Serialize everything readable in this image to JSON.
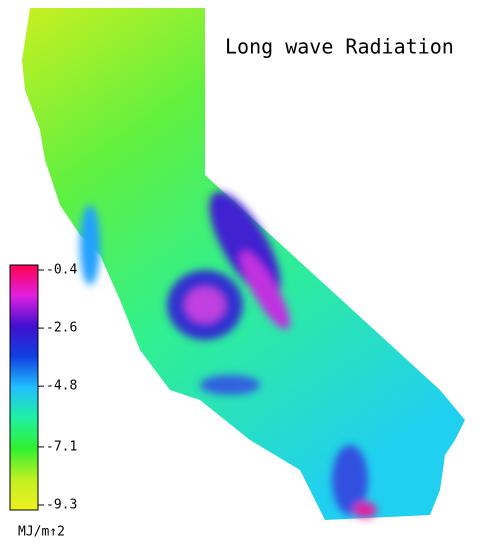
{
  "title": "Long wave Radiation",
  "colorbar": {
    "lim": [
      -9.3,
      -0.4
    ],
    "ticks": [
      -0.4,
      -2.6,
      -4.8,
      -7.1,
      -9.3
    ],
    "unit": "MJ/m↑2",
    "colors": [
      "#ff0050",
      "#e020e0",
      "#4010d0",
      "#1040e0",
      "#20c0ff",
      "#20f0a0",
      "#30f030",
      "#c0f020",
      "#f0f020"
    ]
  }
}
